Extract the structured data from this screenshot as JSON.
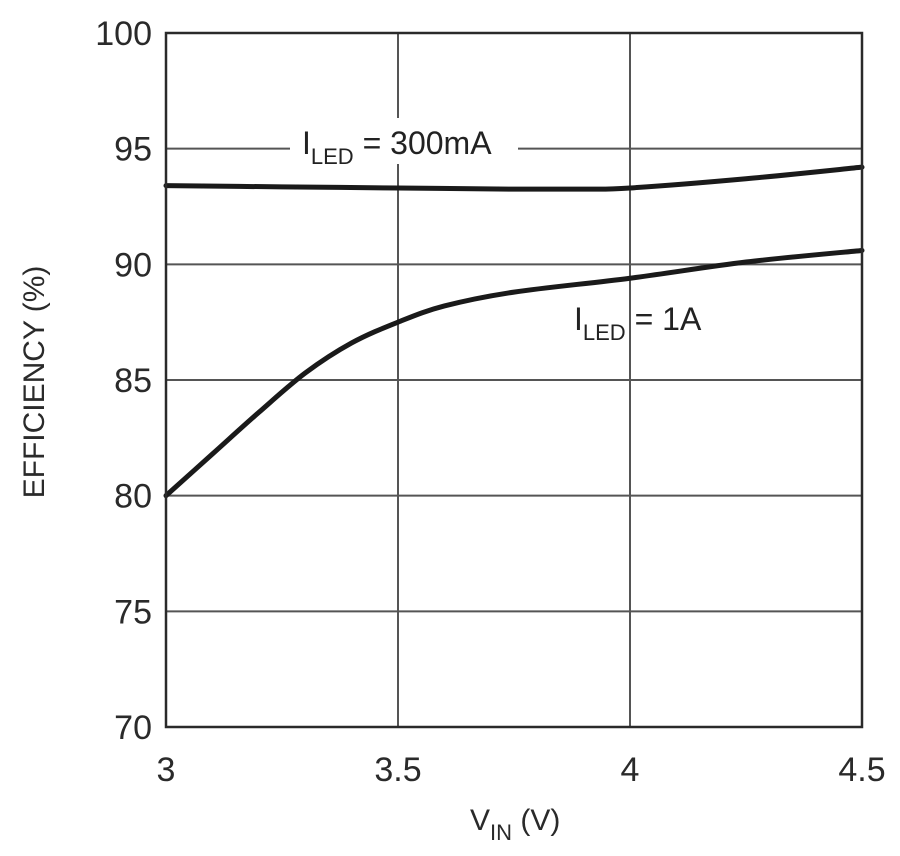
{
  "chart_data": {
    "type": "line",
    "title": "",
    "xlabel": {
      "main": "V",
      "sub": "IN",
      "unit": " (V)"
    },
    "ylabel": "EFFICIENCY (%)",
    "xlim": [
      3,
      4.5
    ],
    "ylim": [
      70,
      100
    ],
    "x_ticks": [
      "3",
      "3.5",
      "4",
      "4.5"
    ],
    "y_ticks": [
      "70",
      "75",
      "80",
      "85",
      "90",
      "95",
      "100"
    ],
    "grid": true,
    "series": [
      {
        "name": {
          "main": "I",
          "sub": "LED",
          "rest": " = 300mA"
        },
        "x": [
          3.0,
          3.25,
          3.5,
          3.75,
          3.9,
          4.0,
          4.25,
          4.5
        ],
        "y": [
          93.4,
          93.35,
          93.3,
          93.25,
          93.25,
          93.3,
          93.7,
          94.2
        ]
      },
      {
        "name": {
          "main": "I",
          "sub": "LED",
          "rest": " = 1A"
        },
        "x": [
          3.0,
          3.1,
          3.2,
          3.3,
          3.4,
          3.5,
          3.6,
          3.75,
          4.0,
          4.25,
          4.5
        ],
        "y": [
          80.0,
          81.8,
          83.6,
          85.3,
          86.6,
          87.5,
          88.2,
          88.8,
          89.4,
          90.1,
          90.6
        ]
      }
    ]
  },
  "colors": {
    "line": "#1a1a1a",
    "grid": "#555555",
    "frame": "#2a2a2a"
  }
}
